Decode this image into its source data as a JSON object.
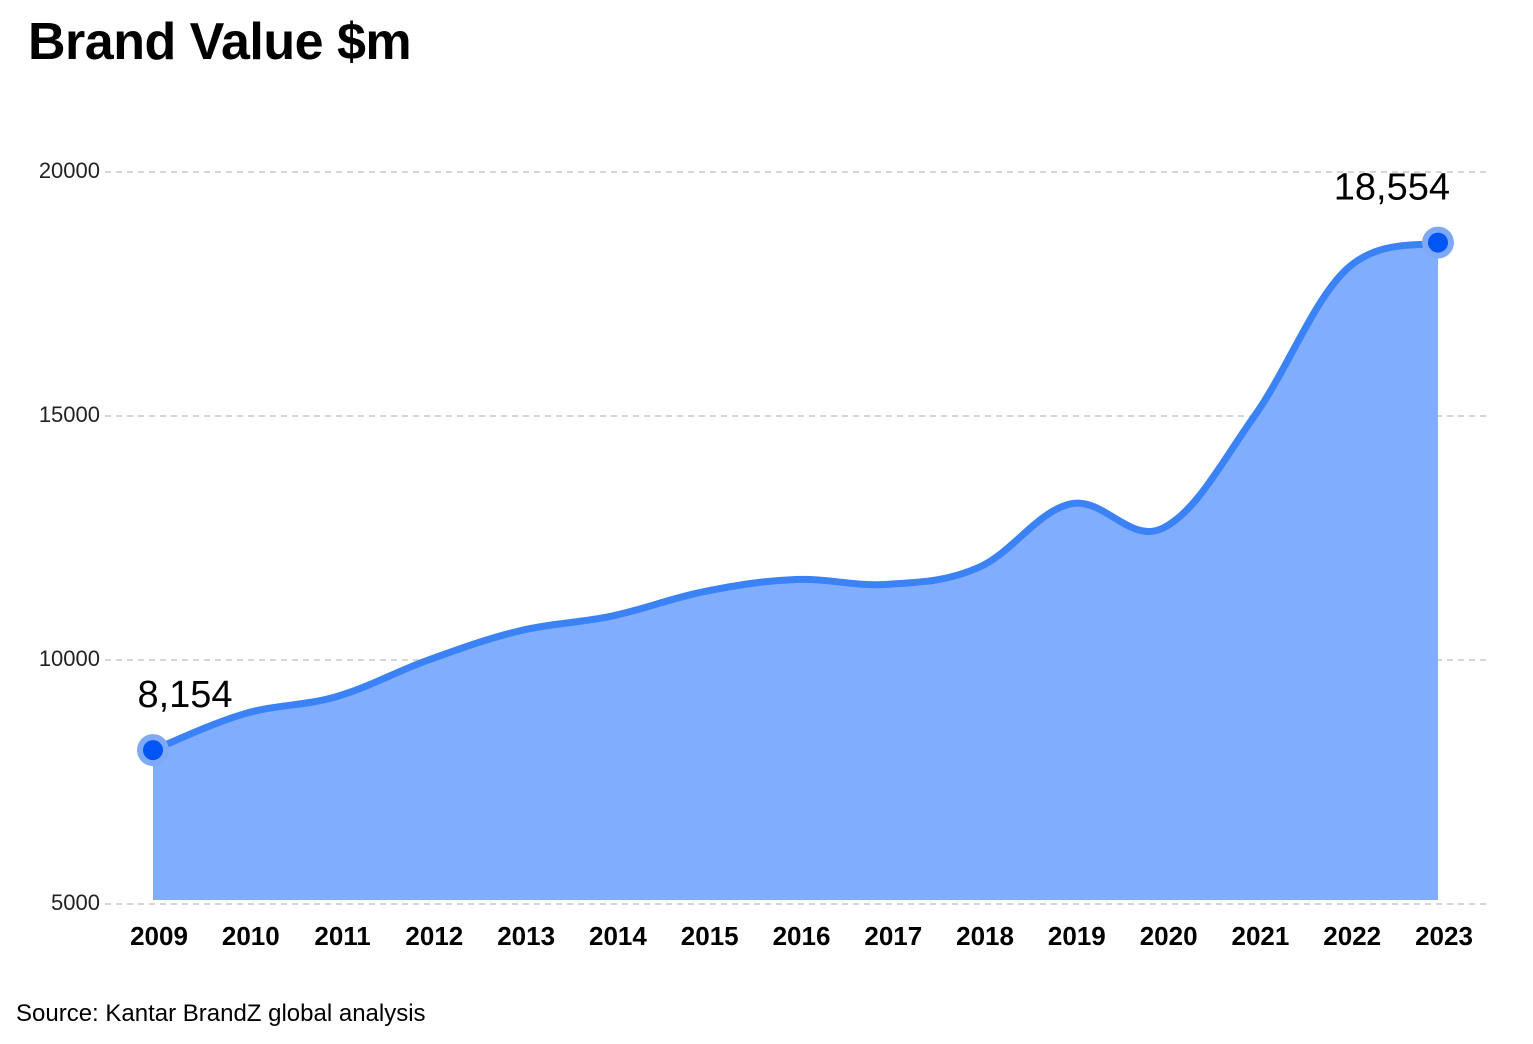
{
  "colors": {
    "line": "#3b82f6",
    "area": "#80adfc",
    "marker": "#0055f5",
    "marker_halo": "#7fa9f7",
    "grid": "#bdbdbd"
  },
  "chart_data": {
    "type": "area",
    "title": "Brand Value $m",
    "source": "Source: Kantar BrandZ global analysis",
    "xlabel": "",
    "ylabel": "",
    "ylim": [
      5000,
      20000
    ],
    "yticks": [
      5000,
      10000,
      15000,
      20000
    ],
    "grid": true,
    "categories": [
      "2009",
      "2010",
      "2011",
      "2012",
      "2013",
      "2014",
      "2015",
      "2016",
      "2017",
      "2018",
      "2019",
      "2020",
      "2021",
      "2022",
      "2023"
    ],
    "values": [
      8154,
      8900,
      9250,
      10000,
      10600,
      10900,
      11400,
      11650,
      11550,
      11900,
      13200,
      12700,
      15000,
      18000,
      18554
    ],
    "data_labels": [
      {
        "category": "2009",
        "text": "8,154"
      },
      {
        "category": "2023",
        "text": "18,554"
      }
    ]
  }
}
